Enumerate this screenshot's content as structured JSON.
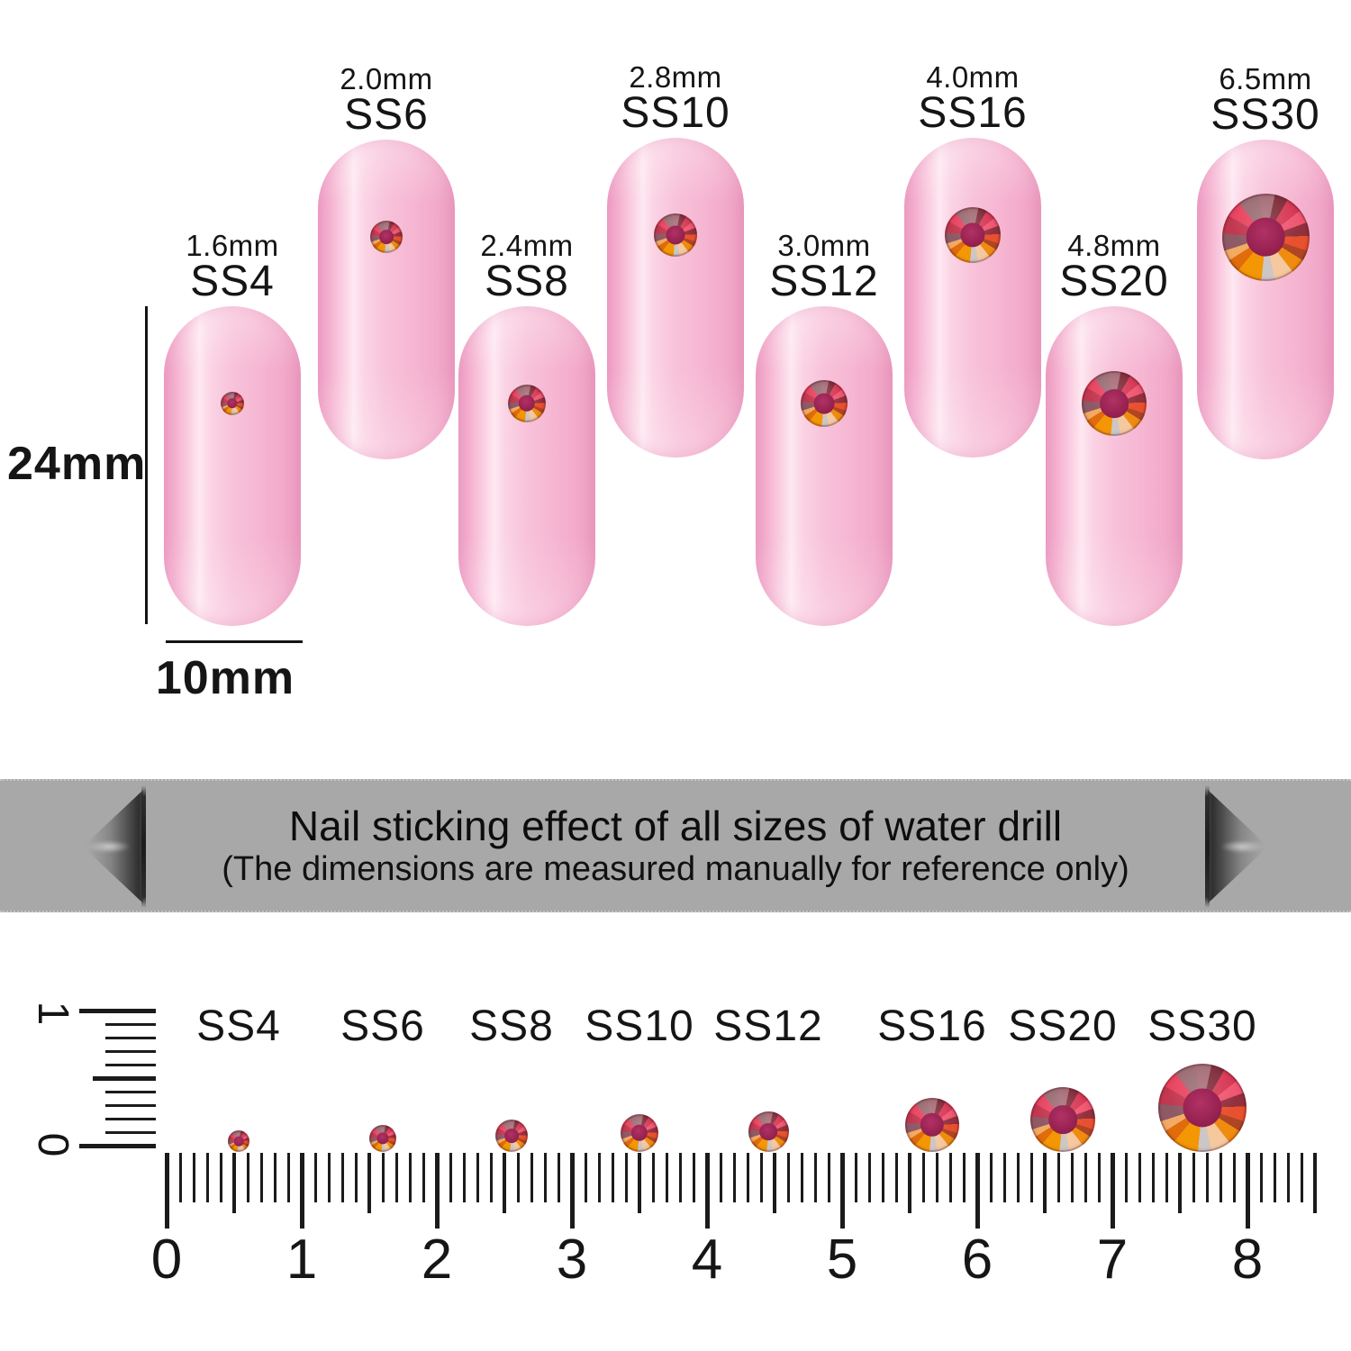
{
  "banner": {
    "title": "Nail sticking effect of all sizes of water drill",
    "subtitle": "(The dimensions are measured manually for reference only)"
  },
  "dimensions": {
    "height_label": "24mm",
    "width_label": "10mm"
  },
  "nails": [
    {
      "size_label": "1.6mm",
      "code": "SS4",
      "mm": 1.6
    },
    {
      "size_label": "2.0mm",
      "code": "SS6",
      "mm": 2.0
    },
    {
      "size_label": "2.4mm",
      "code": "SS8",
      "mm": 2.4
    },
    {
      "size_label": "2.8mm",
      "code": "SS10",
      "mm": 2.8
    },
    {
      "size_label": "3.0mm",
      "code": "SS12",
      "mm": 3.0
    },
    {
      "size_label": "4.0mm",
      "code": "SS16",
      "mm": 4.0
    },
    {
      "size_label": "4.8mm",
      "code": "SS20",
      "mm": 4.8
    },
    {
      "size_label": "6.5mm",
      "code": "SS30",
      "mm": 6.5
    }
  ],
  "ruler": {
    "numbers": [
      "0",
      "1",
      "2",
      "3",
      "4",
      "5",
      "6",
      "7",
      "8"
    ],
    "vertical_top_label": "1",
    "vertical_bottom_label": "0",
    "stones": [
      {
        "code": "SS4",
        "mm": 1.6
      },
      {
        "code": "SS6",
        "mm": 2.0
      },
      {
        "code": "SS8",
        "mm": 2.4
      },
      {
        "code": "SS10",
        "mm": 2.8
      },
      {
        "code": "SS12",
        "mm": 3.0
      },
      {
        "code": "SS16",
        "mm": 4.0
      },
      {
        "code": "SS20",
        "mm": 4.8
      },
      {
        "code": "SS30",
        "mm": 6.5
      }
    ]
  },
  "colors": {
    "banner_bg": "#a8a8a8",
    "nail_pink": "#f8bcd6",
    "stone_center": "#9b2153",
    "stone_orange": "#f49704",
    "ink": "#151515"
  }
}
